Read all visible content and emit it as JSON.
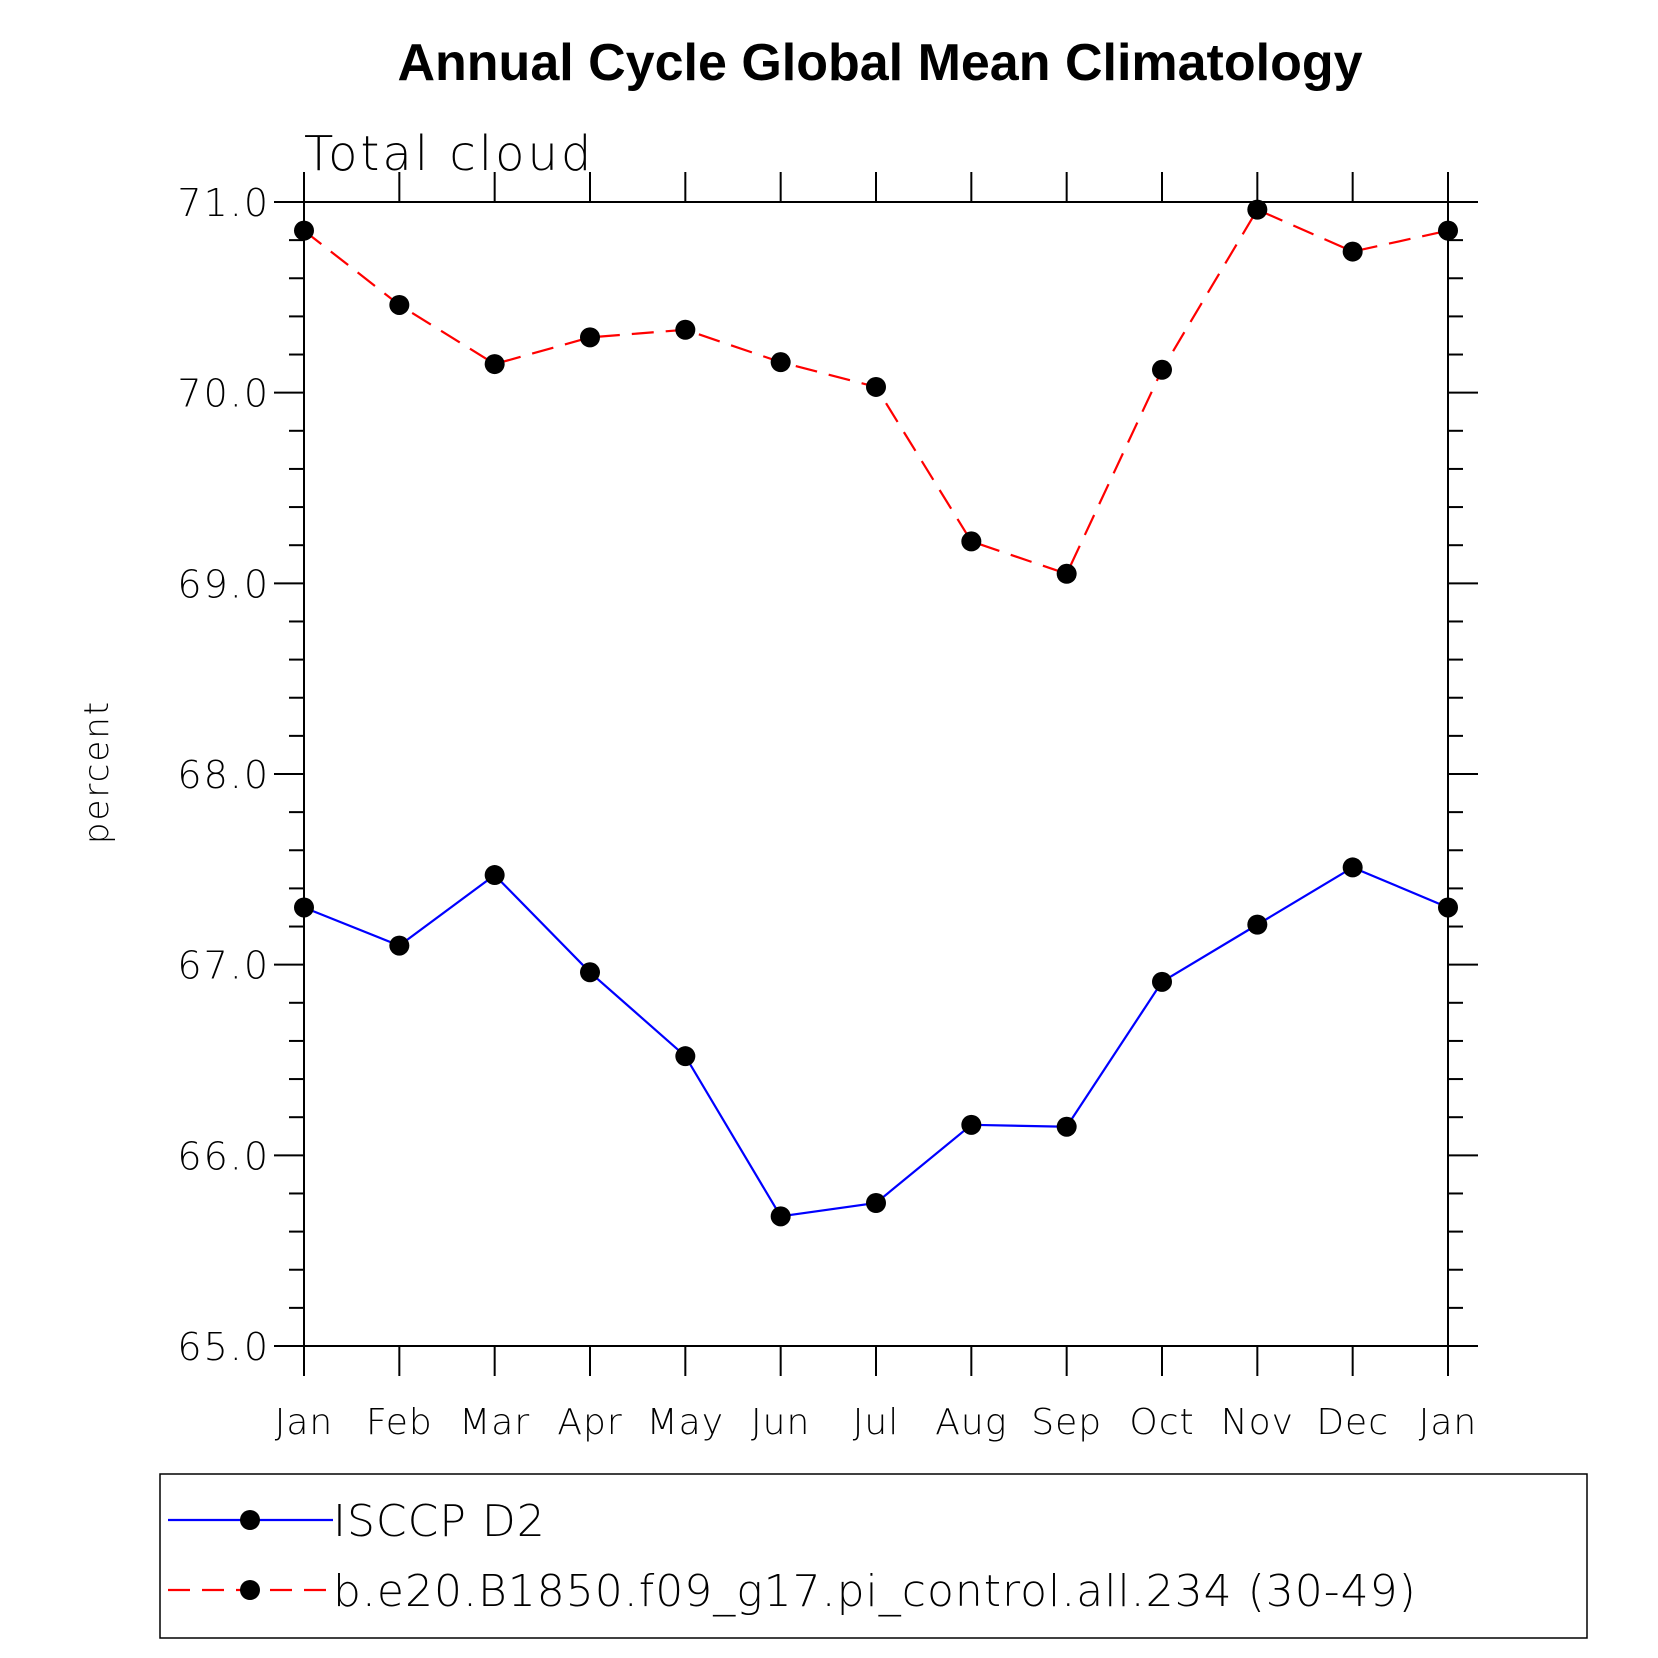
{
  "chart_data": {
    "type": "line",
    "title": "Annual Cycle Global Mean Climatology",
    "subtitle": "Total cloud",
    "ylabel": "percent",
    "xlabel": "",
    "ylim": [
      65.0,
      71.0
    ],
    "yticks": [
      "65.0",
      "66.0",
      "67.0",
      "68.0",
      "69.0",
      "70.0",
      "71.0"
    ],
    "categories": [
      "Jan",
      "Feb",
      "Mar",
      "Apr",
      "May",
      "Jun",
      "Jul",
      "Aug",
      "Sep",
      "Oct",
      "Nov",
      "Dec",
      "Jan"
    ],
    "legend_placement": "bottom",
    "grid": false,
    "series": [
      {
        "name": "ISCCP D2",
        "color": "#0000ff",
        "dash": "solid",
        "marker": "filled-circle",
        "values": [
          67.3,
          67.1,
          67.47,
          66.96,
          66.52,
          65.68,
          65.75,
          66.16,
          66.15,
          66.91,
          67.21,
          67.51,
          67.3
        ]
      },
      {
        "name": "b.e20.B1850.f09_g17.pi_control.all.234 (30-49)",
        "color": "#ff0000",
        "dash": "dashed",
        "marker": "filled-circle",
        "values": [
          70.85,
          70.46,
          70.15,
          70.29,
          70.33,
          70.16,
          70.03,
          69.22,
          69.05,
          70.12,
          70.96,
          70.74,
          70.85
        ]
      }
    ]
  }
}
